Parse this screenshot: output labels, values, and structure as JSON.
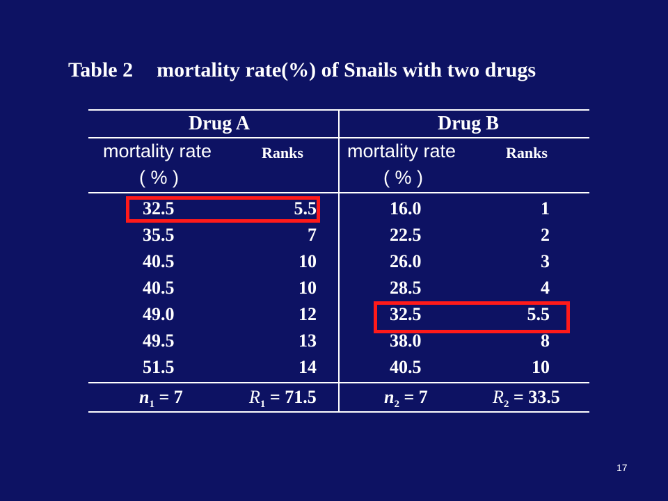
{
  "title": {
    "label": "Table 2",
    "text": "mortality rate(%) of Snails with two drugs"
  },
  "groups": {
    "a": "Drug A",
    "b": "Drug B"
  },
  "headers": {
    "a_rate": "mortality rate",
    "a_unit": "( % )",
    "a_ranks": "Ranks",
    "b_rate": "mortality rate",
    "b_unit": "( % )",
    "b_ranks": "Ranks"
  },
  "rows": [
    {
      "a_rate": "32.5",
      "a_rank": "5.5",
      "b_rate": "16.0",
      "b_rank": "1"
    },
    {
      "a_rate": "35.5",
      "a_rank": "7",
      "b_rate": "22.5",
      "b_rank": "2"
    },
    {
      "a_rate": "40.5",
      "a_rank": "10",
      "b_rate": "26.0",
      "b_rank": "3"
    },
    {
      "a_rate": "40.5",
      "a_rank": "10",
      "b_rate": "28.5",
      "b_rank": "4"
    },
    {
      "a_rate": "49.0",
      "a_rank": "12",
      "b_rate": "32.5",
      "b_rank": "5.5"
    },
    {
      "a_rate": "49.5",
      "a_rank": "13",
      "b_rate": "38.0",
      "b_rank": "8"
    },
    {
      "a_rate": "51.5",
      "a_rank": "14",
      "b_rate": "40.5",
      "b_rank": "10"
    }
  ],
  "summary": {
    "n1_sym": "n",
    "n1_sub": "1",
    "n1_val": "= 7",
    "r1_sym": "R",
    "r1_sub": "1",
    "r1_val": "= 71.5",
    "n2_sym": "n",
    "n2_sub": "2",
    "n2_val": "= 7",
    "r2_sym": "R",
    "r2_sub": "2",
    "r2_val": "= 33.5"
  },
  "page_number": "17",
  "colors": {
    "background": "#0d1263",
    "text": "#ffffff",
    "highlight": "#ff1a1a"
  }
}
